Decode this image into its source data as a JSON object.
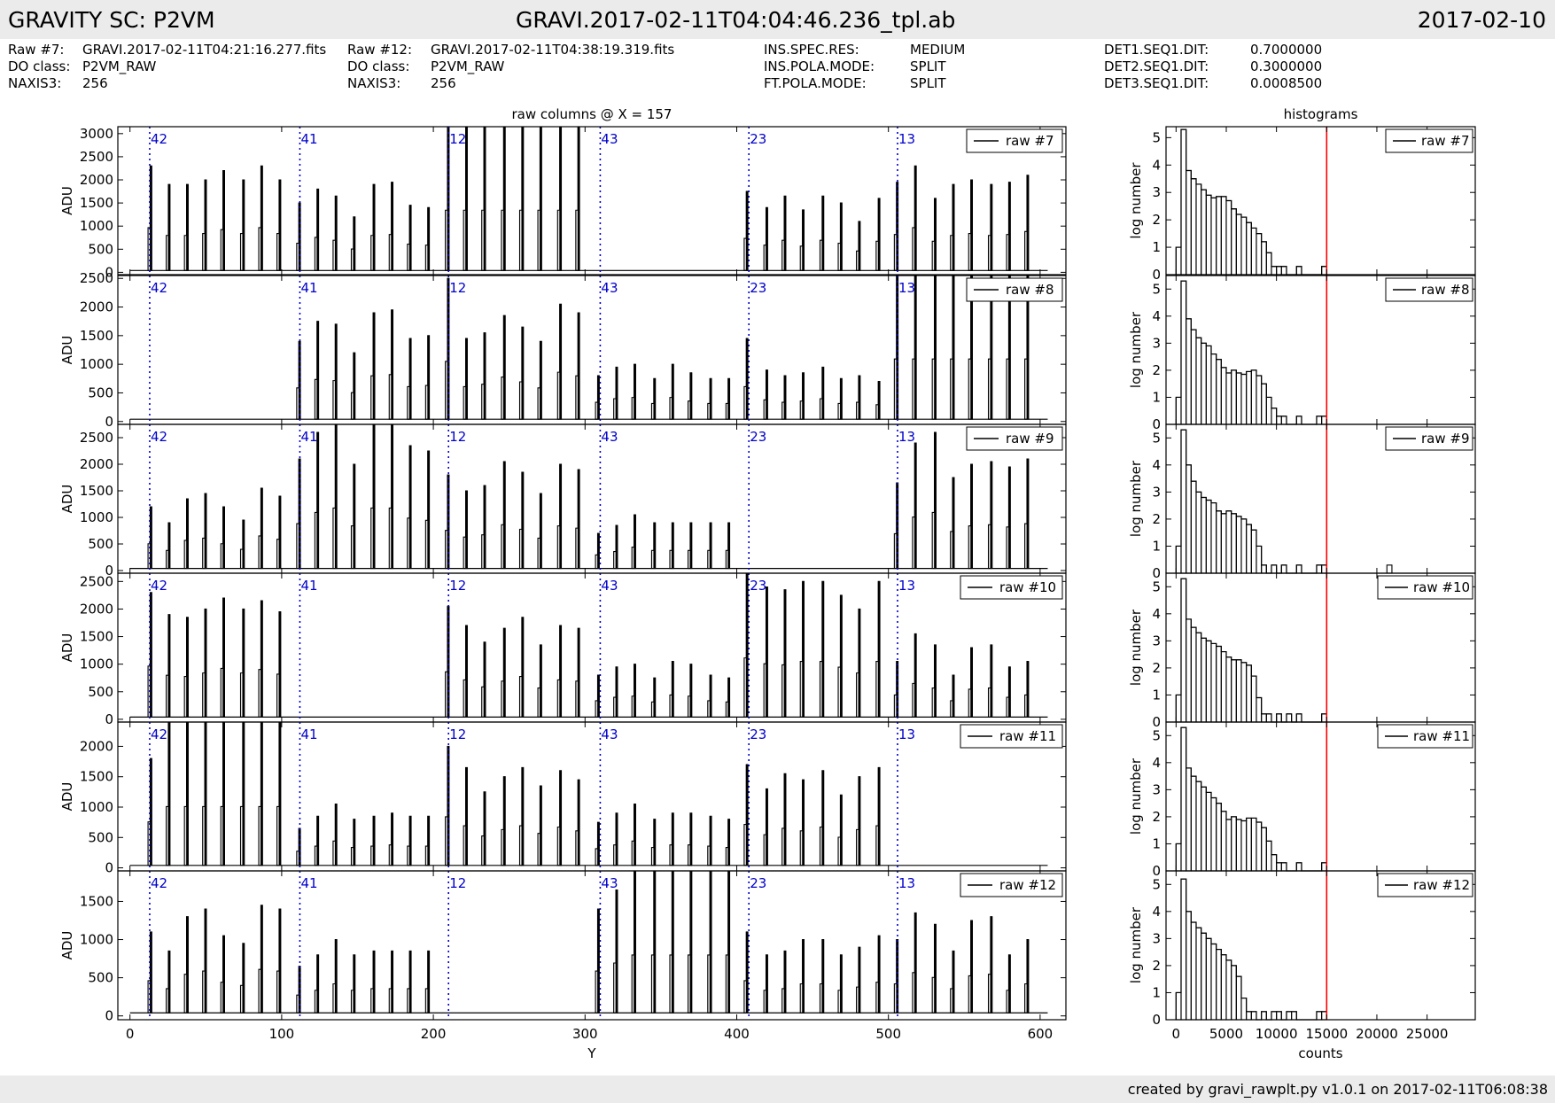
{
  "header": {
    "left": "GRAVITY SC: P2VM",
    "center": "GRAVI.2017-02-11T04:04:46.236_tpl.ab",
    "right": "2017-02-10"
  },
  "info": {
    "col1": [
      {
        "label": "Raw #7:",
        "value": "GRAVI.2017-02-11T04:21:16.277.fits"
      },
      {
        "label": "DO class:",
        "value": "P2VM_RAW"
      },
      {
        "label": "NAXIS3:",
        "value": "256"
      }
    ],
    "col2": [
      {
        "label": "Raw #12:",
        "value": "GRAVI.2017-02-11T04:38:19.319.fits"
      },
      {
        "label": "DO class:",
        "value": "P2VM_RAW"
      },
      {
        "label": "NAXIS3:",
        "value": "256"
      }
    ],
    "col3": [
      {
        "label": "INS.SPEC.RES:",
        "value": "MEDIUM"
      },
      {
        "label": "INS.POLA.MODE:",
        "value": "SPLIT"
      },
      {
        "label": "FT.POLA.MODE:",
        "value": "SPLIT"
      }
    ],
    "col4": [
      {
        "label": "DET1.SEQ1.DIT:",
        "value": "0.7000000"
      },
      {
        "label": "DET2.SEQ1.DIT:",
        "value": "0.3000000"
      },
      {
        "label": "DET3.SEQ1.DIT:",
        "value": "0.0008500"
      }
    ]
  },
  "footer": "created by gravi_rawplt.py v1.0.1 on 2017-02-11T06:08:38",
  "colors": {
    "trace": "#000000",
    "marker": "#0000cc",
    "threshold": "#ff0000",
    "banner": "#ebebeb"
  },
  "chart_data": [
    {
      "type": "line",
      "title": "raw columns @ X = 157",
      "xlabel": "Y",
      "ylabel": "ADU",
      "xlim": [
        -8,
        617
      ],
      "xticks": [
        0,
        100,
        200,
        300,
        400,
        500,
        600
      ],
      "peak_positions": [
        14,
        26,
        38,
        50,
        62,
        75,
        87,
        99,
        112,
        124,
        136,
        148,
        161,
        173,
        185,
        197,
        210,
        222,
        234,
        247,
        259,
        271,
        284,
        296,
        309,
        321,
        333,
        346,
        358,
        370,
        383,
        395,
        407,
        420,
        432,
        444,
        457,
        469,
        481,
        494,
        506,
        518,
        531,
        543,
        555,
        568,
        580,
        592
      ],
      "markers": [
        {
          "y": 13,
          "label": "42"
        },
        {
          "y": 112,
          "label": "41"
        },
        {
          "y": 210,
          "label": "12"
        },
        {
          "y": 310,
          "label": "43"
        },
        {
          "y": 408,
          "label": "23"
        },
        {
          "y": 506,
          "label": "13"
        }
      ],
      "panels": [
        {
          "legend": "raw #7",
          "ylim": [
            -50,
            3150
          ],
          "yticks": [
            0,
            500,
            1000,
            1500,
            2000,
            2500,
            3000
          ],
          "peaks": [
            2300,
            1900,
            1900,
            2000,
            2200,
            2000,
            2300,
            2000,
            1500,
            1800,
            1650,
            1200,
            1900,
            1950,
            1450,
            1400,
            3200,
            3200,
            3200,
            3200,
            3200,
            3200,
            3200,
            3200,
            0,
            0,
            0,
            0,
            0,
            0,
            0,
            0,
            1750,
            1400,
            1650,
            1350,
            1650,
            1500,
            1100,
            1600,
            1950,
            2300,
            1600,
            1900,
            2000,
            1900,
            1950,
            2100
          ]
        },
        {
          "legend": "raw #8",
          "ylim": [
            -50,
            2550
          ],
          "yticks": [
            0,
            500,
            1000,
            1500,
            2000,
            2500
          ],
          "peaks": [
            0,
            0,
            0,
            0,
            0,
            0,
            0,
            0,
            1400,
            1750,
            1700,
            1200,
            1900,
            1950,
            1450,
            1500,
            2500,
            1450,
            1550,
            1850,
            1650,
            1400,
            2050,
            1900,
            800,
            950,
            1000,
            750,
            1000,
            850,
            750,
            750,
            1450,
            900,
            800,
            850,
            950,
            750,
            800,
            700,
            2600,
            2600,
            2600,
            2600,
            2600,
            2600,
            2600,
            2600
          ]
        },
        {
          "legend": "raw #9",
          "ylim": [
            -50,
            2750
          ],
          "yticks": [
            0,
            500,
            1000,
            1500,
            2000,
            2500
          ],
          "peaks": [
            1200,
            900,
            1350,
            1450,
            1200,
            950,
            1550,
            1400,
            2100,
            2600,
            2800,
            2000,
            2800,
            2800,
            2350,
            2250,
            1800,
            1500,
            1600,
            2050,
            1850,
            1450,
            2000,
            1900,
            700,
            850,
            1050,
            900,
            900,
            900,
            900,
            900,
            0,
            0,
            0,
            0,
            0,
            0,
            0,
            0,
            1650,
            2400,
            2600,
            1750,
            2000,
            2050,
            1950,
            2100
          ]
        },
        {
          "legend": "raw #10",
          "ylim": [
            -50,
            2650
          ],
          "yticks": [
            0,
            500,
            1000,
            1500,
            2000,
            2500
          ],
          "peaks": [
            2300,
            1900,
            1850,
            2000,
            2200,
            2000,
            2150,
            1950,
            0,
            0,
            0,
            0,
            0,
            0,
            0,
            0,
            2050,
            1700,
            1400,
            1650,
            1850,
            1350,
            1700,
            1650,
            800,
            950,
            1000,
            750,
            1050,
            1000,
            800,
            750,
            2650,
            2400,
            2350,
            2500,
            2500,
            2250,
            2000,
            2500,
            1050,
            1550,
            1350,
            800,
            1300,
            1350,
            950,
            1050
          ]
        },
        {
          "legend": "raw #11",
          "ylim": [
            -50,
            2400
          ],
          "yticks": [
            0,
            500,
            1000,
            1500,
            2000
          ],
          "peaks": [
            1800,
            2400,
            2400,
            2400,
            2400,
            2400,
            2400,
            2400,
            650,
            850,
            1050,
            800,
            850,
            900,
            850,
            850,
            2000,
            1650,
            1250,
            1500,
            1650,
            1350,
            1600,
            1450,
            750,
            900,
            1050,
            800,
            900,
            900,
            850,
            800,
            1700,
            1300,
            1550,
            1450,
            1600,
            1200,
            1500,
            1650,
            0,
            0,
            0,
            0,
            0,
            0,
            0,
            0
          ]
        },
        {
          "legend": "raw #12",
          "ylim": [
            -50,
            1900
          ],
          "yticks": [
            0,
            500,
            1000,
            1500
          ],
          "peaks": [
            1100,
            850,
            1300,
            1400,
            1050,
            950,
            1450,
            1400,
            650,
            800,
            1000,
            800,
            850,
            850,
            850,
            850,
            0,
            0,
            0,
            0,
            0,
            0,
            0,
            0,
            1400,
            1650,
            1900,
            1900,
            1900,
            1900,
            1900,
            1900,
            1100,
            800,
            850,
            1000,
            1000,
            800,
            900,
            1050,
            1000,
            1350,
            1200,
            850,
            1250,
            1300,
            800,
            1000
          ]
        }
      ]
    },
    {
      "type": "bar",
      "title": "histograms",
      "xlabel": "counts",
      "ylabel": "log number",
      "xlim": [
        -1000,
        29800
      ],
      "xticks": [
        0,
        5000,
        10000,
        15000,
        20000,
        25000
      ],
      "threshold": 15000,
      "bin_width": 500,
      "panels": [
        {
          "legend": "raw #7",
          "ylim": [
            0,
            5.4
          ],
          "yticks": [
            0,
            1,
            2,
            3,
            4,
            5
          ],
          "log_counts": [
            1.0,
            5.3,
            3.8,
            3.5,
            3.3,
            3.1,
            2.9,
            2.8,
            2.85,
            2.85,
            2.7,
            2.4,
            2.2,
            2.1,
            1.9,
            1.7,
            1.5,
            1.2,
            0.8,
            0.3,
            0.3,
            0.3,
            0,
            0,
            0.3,
            0,
            0,
            0,
            0,
            0.3
          ],
          "extra_bins": []
        },
        {
          "legend": "raw #8",
          "ylim": [
            0,
            5.5
          ],
          "yticks": [
            0,
            1,
            2,
            3,
            4,
            5
          ],
          "log_counts": [
            1.0,
            5.3,
            3.9,
            3.5,
            3.2,
            3.0,
            2.9,
            2.6,
            2.4,
            2.1,
            1.9,
            2.0,
            1.9,
            1.85,
            1.95,
            2.0,
            1.8,
            1.5,
            1.0,
            0.6,
            0.3,
            0.3,
            0,
            0,
            0.3,
            0,
            0,
            0,
            0.3,
            0.3
          ],
          "extra_bins": []
        },
        {
          "legend": "raw #9",
          "ylim": [
            0,
            5.5
          ],
          "yticks": [
            0,
            1,
            2,
            3,
            4,
            5
          ],
          "log_counts": [
            1.0,
            5.3,
            4.0,
            3.4,
            3.0,
            2.8,
            2.7,
            2.6,
            2.3,
            2.2,
            2.3,
            2.2,
            2.1,
            2.0,
            1.8,
            1.6,
            1.0,
            0.3,
            0,
            0.3,
            0,
            0.3,
            0,
            0,
            0.3,
            0,
            0,
            0,
            0.3,
            0.3
          ],
          "extra_bins": [
            {
              "x": 21000,
              "v": 0.3
            }
          ]
        },
        {
          "legend": "raw #10",
          "ylim": [
            0,
            5.5
          ],
          "yticks": [
            0,
            1,
            2,
            3,
            4,
            5
          ],
          "log_counts": [
            1.0,
            5.3,
            3.8,
            3.5,
            3.3,
            3.1,
            3.0,
            2.9,
            2.8,
            2.6,
            2.4,
            2.3,
            2.3,
            2.2,
            2.1,
            1.7,
            0.9,
            0.3,
            0.3,
            0,
            0.3,
            0,
            0.3,
            0,
            0.3,
            0,
            0,
            0,
            0,
            0.3
          ],
          "extra_bins": []
        },
        {
          "legend": "raw #11",
          "ylim": [
            0,
            5.5
          ],
          "yticks": [
            0,
            1,
            2,
            3,
            4,
            5
          ],
          "log_counts": [
            1.0,
            5.3,
            3.8,
            3.5,
            3.3,
            3.1,
            2.9,
            2.7,
            2.5,
            2.2,
            1.9,
            2.0,
            1.9,
            1.85,
            1.95,
            1.95,
            1.8,
            1.6,
            1.1,
            0.6,
            0.3,
            0.3,
            0,
            0,
            0.3,
            0,
            0,
            0,
            0,
            0.3
          ],
          "extra_bins": []
        },
        {
          "legend": "raw #12",
          "ylim": [
            0,
            5.5
          ],
          "yticks": [
            0,
            1,
            2,
            3,
            4,
            5
          ],
          "log_counts": [
            1.0,
            5.2,
            4.0,
            3.6,
            3.4,
            3.2,
            3.0,
            2.8,
            2.6,
            2.4,
            2.2,
            2.0,
            1.6,
            0.8,
            0.3,
            0.3,
            0,
            0.3,
            0,
            0.3,
            0.3,
            0,
            0.3,
            0.3,
            0,
            0,
            0,
            0,
            0.3,
            0.3
          ],
          "extra_bins": []
        }
      ]
    }
  ]
}
